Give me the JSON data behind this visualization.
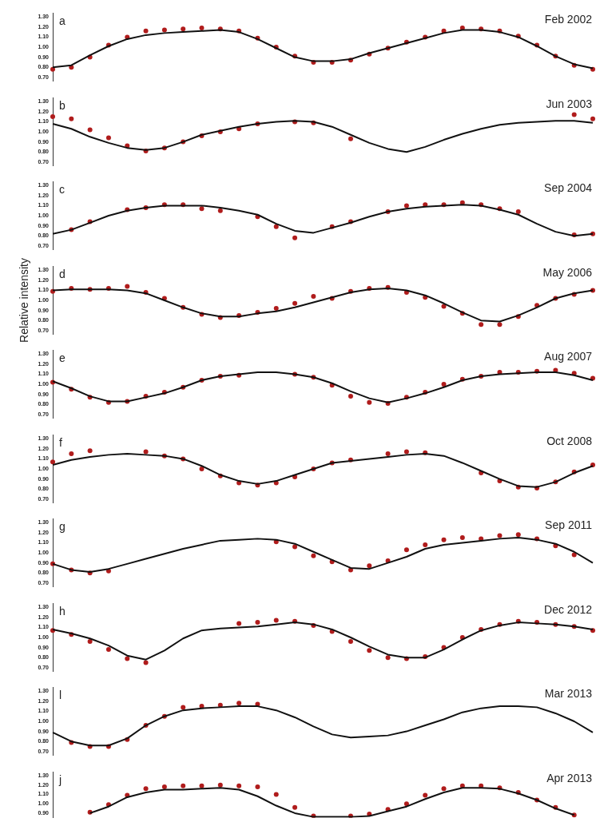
{
  "chart_data": [
    {
      "type": "line",
      "title": "Feb 2002",
      "annotations": [
        "a"
      ],
      "categories": [
        null,
        null,
        null,
        null,
        null,
        null,
        null,
        null,
        null,
        null,
        null,
        null,
        null,
        null,
        null,
        null,
        null,
        null,
        null,
        null,
        null,
        null,
        null,
        null,
        null,
        null,
        null,
        null,
        null,
        null
      ],
      "ylim": [
        0.66,
        1.34
      ],
      "yticks": [
        {
          "value": 0.7,
          "label": "0.70"
        },
        {
          "value": 0.8,
          "label": "0.80"
        },
        {
          "value": 0.9,
          "label": "0.90"
        },
        {
          "value": 1.0,
          "label": "1.00"
        },
        {
          "value": 1.1,
          "label": "1.10"
        },
        {
          "value": 1.2,
          "label": "1.20"
        },
        {
          "value": 1.3,
          "label": "1.30"
        }
      ],
      "tick_labels": "y",
      "series": [
        {
          "marker": "none",
          "color": "#111111",
          "values": [
            0.8,
            0.82,
            0.92,
            1.01,
            1.08,
            1.12,
            1.14,
            1.15,
            1.16,
            1.17,
            1.15,
            1.08,
            0.99,
            0.9,
            0.86,
            0.86,
            0.88,
            0.94,
            0.99,
            1.04,
            1.09,
            1.14,
            1.17,
            1.17,
            1.15,
            1.1,
            1.01,
            0.91,
            0.83,
            0.79
          ]
        },
        {
          "type": "scatter",
          "marker": "circle",
          "color": "#b01c1c",
          "values": [
            0.78,
            0.8,
            0.9,
            1.02,
            1.1,
            1.16,
            1.17,
            1.18,
            1.19,
            1.18,
            1.16,
            1.09,
            1.0,
            0.91,
            0.85,
            0.85,
            0.87,
            0.93,
            0.99,
            1.05,
            1.1,
            1.16,
            1.19,
            1.18,
            1.16,
            1.11,
            1.02,
            0.91,
            0.82,
            0.78
          ]
        }
      ]
    },
    {
      "type": "line",
      "title": "Jun 2003",
      "annotations": [
        "b"
      ],
      "categories": [
        null,
        null,
        null,
        null,
        null,
        null,
        null,
        null,
        null,
        null,
        null,
        null,
        null,
        null,
        null,
        null,
        null,
        null,
        null,
        null,
        null,
        null,
        null,
        null,
        null,
        null,
        null,
        null,
        null,
        null
      ],
      "ylim": [
        0.66,
        1.34
      ],
      "yticks": [
        {
          "value": 0.7,
          "label": "0.70"
        },
        {
          "value": 0.8,
          "label": "0.80"
        },
        {
          "value": 0.9,
          "label": "0.90"
        },
        {
          "value": 1.0,
          "label": "1.00"
        },
        {
          "value": 1.1,
          "label": "1.10"
        },
        {
          "value": 1.2,
          "label": "1.20"
        },
        {
          "value": 1.3,
          "label": "1.30"
        }
      ],
      "tick_labels": "y",
      "series": [
        {
          "marker": "none",
          "color": "#111111",
          "values": [
            1.08,
            1.03,
            0.95,
            0.89,
            0.84,
            0.82,
            0.84,
            0.9,
            0.97,
            1.01,
            1.05,
            1.08,
            1.1,
            1.11,
            1.1,
            1.05,
            0.97,
            0.89,
            0.83,
            0.8,
            0.85,
            0.92,
            0.98,
            1.03,
            1.07,
            1.09,
            1.1,
            1.11,
            1.11,
            1.09
          ]
        },
        {
          "type": "scatter",
          "marker": "circle",
          "color": "#b01c1c",
          "values": [
            1.15,
            1.13,
            1.02,
            0.94,
            0.86,
            0.81,
            0.84,
            0.9,
            0.96,
            1.0,
            1.03,
            1.08,
            null,
            1.1,
            1.09,
            null,
            0.93,
            null,
            null,
            null,
            null,
            null,
            null,
            null,
            null,
            null,
            null,
            null,
            1.17,
            1.13
          ]
        }
      ]
    },
    {
      "type": "line",
      "title": "Sep 2004",
      "annotations": [
        "c"
      ],
      "categories": [
        null,
        null,
        null,
        null,
        null,
        null,
        null,
        null,
        null,
        null,
        null,
        null,
        null,
        null,
        null,
        null,
        null,
        null,
        null,
        null,
        null,
        null,
        null,
        null,
        null,
        null,
        null,
        null,
        null,
        null
      ],
      "ylim": [
        0.66,
        1.34
      ],
      "yticks": [
        {
          "value": 0.7,
          "label": "0.70"
        },
        {
          "value": 0.8,
          "label": "0.80"
        },
        {
          "value": 0.9,
          "label": "0.90"
        },
        {
          "value": 1.0,
          "label": "1.00"
        },
        {
          "value": 1.1,
          "label": "1.10"
        },
        {
          "value": 1.2,
          "label": "1.20"
        },
        {
          "value": 1.3,
          "label": "1.30"
        }
      ],
      "tick_labels": "y",
      "series": [
        {
          "marker": "none",
          "color": "#111111",
          "values": [
            0.82,
            0.86,
            0.93,
            1.0,
            1.05,
            1.08,
            1.1,
            1.1,
            1.1,
            1.08,
            1.05,
            1.01,
            0.92,
            0.85,
            0.83,
            0.88,
            0.93,
            0.99,
            1.04,
            1.07,
            1.09,
            1.1,
            1.11,
            1.1,
            1.06,
            1.01,
            0.92,
            0.84,
            0.8,
            0.82
          ]
        },
        {
          "type": "scatter",
          "marker": "circle",
          "color": "#b01c1c",
          "values": [
            null,
            0.86,
            0.94,
            null,
            1.06,
            1.08,
            1.11,
            1.11,
            1.07,
            1.05,
            null,
            0.99,
            0.89,
            0.78,
            null,
            0.89,
            0.94,
            null,
            1.04,
            1.1,
            1.11,
            1.11,
            1.13,
            1.11,
            1.07,
            1.04,
            null,
            null,
            0.81,
            0.82
          ]
        }
      ]
    },
    {
      "type": "line",
      "title": "May 2006",
      "ylabel": "Relative intensity",
      "annotations": [
        "d"
      ],
      "categories": [
        null,
        null,
        null,
        null,
        null,
        null,
        null,
        null,
        null,
        null,
        null,
        null,
        null,
        null,
        null,
        null,
        null,
        null,
        null,
        null,
        null,
        null,
        null,
        null,
        null,
        null,
        null,
        null,
        null,
        null
      ],
      "ylim": [
        0.66,
        1.34
      ],
      "yticks": [
        {
          "value": 0.7,
          "label": "0.70"
        },
        {
          "value": 0.8,
          "label": "0.80"
        },
        {
          "value": 0.9,
          "label": "0.90"
        },
        {
          "value": 1.0,
          "label": "1.00"
        },
        {
          "value": 1.1,
          "label": "1.10"
        },
        {
          "value": 1.2,
          "label": "1.20"
        },
        {
          "value": 1.3,
          "label": "1.30"
        }
      ],
      "tick_labels": "y",
      "series": [
        {
          "marker": "none",
          "color": "#111111",
          "values": [
            1.1,
            1.11,
            1.11,
            1.11,
            1.1,
            1.07,
            1.0,
            0.93,
            0.87,
            0.84,
            0.84,
            0.87,
            0.89,
            0.93,
            0.98,
            1.03,
            1.08,
            1.11,
            1.12,
            1.1,
            1.05,
            0.97,
            0.88,
            0.8,
            0.79,
            0.85,
            0.93,
            1.02,
            1.07,
            1.1
          ]
        },
        {
          "type": "scatter",
          "marker": "circle",
          "color": "#b01c1c",
          "values": [
            1.09,
            1.12,
            1.11,
            1.12,
            1.14,
            1.08,
            1.02,
            0.93,
            0.86,
            0.83,
            0.85,
            0.88,
            0.92,
            0.97,
            1.04,
            1.02,
            1.09,
            1.12,
            1.13,
            1.08,
            1.03,
            0.94,
            0.87,
            0.76,
            0.76,
            0.84,
            0.95,
            1.02,
            1.06,
            1.1
          ]
        }
      ]
    },
    {
      "type": "line",
      "title": "Aug 2007",
      "annotations": [
        "e"
      ],
      "categories": [
        null,
        null,
        null,
        null,
        null,
        null,
        null,
        null,
        null,
        null,
        null,
        null,
        null,
        null,
        null,
        null,
        null,
        null,
        null,
        null,
        null,
        null,
        null,
        null,
        null,
        null,
        null,
        null,
        null,
        null
      ],
      "ylim": [
        0.66,
        1.34
      ],
      "yticks": [
        {
          "value": 0.7,
          "label": "0.70"
        },
        {
          "value": 0.8,
          "label": "0.80"
        },
        {
          "value": 0.9,
          "label": "0.90"
        },
        {
          "value": 1.0,
          "label": "1.00"
        },
        {
          "value": 1.1,
          "label": "1.10"
        },
        {
          "value": 1.2,
          "label": "1.20"
        },
        {
          "value": 1.3,
          "label": "1.30"
        }
      ],
      "tick_labels": "y",
      "series": [
        {
          "marker": "none",
          "color": "#111111",
          "values": [
            1.03,
            0.96,
            0.88,
            0.83,
            0.83,
            0.87,
            0.91,
            0.97,
            1.04,
            1.08,
            1.1,
            1.12,
            1.12,
            1.1,
            1.07,
            1.01,
            0.93,
            0.86,
            0.82,
            0.86,
            0.91,
            0.97,
            1.04,
            1.08,
            1.1,
            1.11,
            1.12,
            1.12,
            1.09,
            1.04
          ]
        },
        {
          "type": "scatter",
          "marker": "circle",
          "color": "#b01c1c",
          "values": [
            1.02,
            0.95,
            0.87,
            0.82,
            0.83,
            0.88,
            0.92,
            0.97,
            1.04,
            1.08,
            1.09,
            null,
            null,
            1.1,
            1.07,
            0.99,
            0.88,
            0.82,
            0.81,
            0.87,
            0.92,
            1.0,
            1.05,
            1.08,
            1.12,
            1.12,
            1.13,
            1.14,
            1.11,
            1.06
          ]
        }
      ]
    },
    {
      "type": "line",
      "title": "Oct 2008",
      "annotations": [
        "f"
      ],
      "categories": [
        null,
        null,
        null,
        null,
        null,
        null,
        null,
        null,
        null,
        null,
        null,
        null,
        null,
        null,
        null,
        null,
        null,
        null,
        null,
        null,
        null,
        null,
        null,
        null,
        null,
        null,
        null,
        null,
        null,
        null
      ],
      "ylim": [
        0.66,
        1.34
      ],
      "yticks": [
        {
          "value": 0.7,
          "label": "0.70"
        },
        {
          "value": 0.8,
          "label": "0.80"
        },
        {
          "value": 0.9,
          "label": "0.90"
        },
        {
          "value": 1.0,
          "label": "1.00"
        },
        {
          "value": 1.1,
          "label": "1.10"
        },
        {
          "value": 1.2,
          "label": "1.20"
        },
        {
          "value": 1.3,
          "label": "1.30"
        }
      ],
      "tick_labels": "y",
      "series": [
        {
          "marker": "none",
          "color": "#111111",
          "values": [
            1.04,
            1.09,
            1.12,
            1.14,
            1.15,
            1.14,
            1.13,
            1.1,
            1.03,
            0.94,
            0.88,
            0.85,
            0.88,
            0.94,
            1.0,
            1.06,
            1.08,
            1.1,
            1.12,
            1.14,
            1.15,
            1.13,
            1.06,
            0.98,
            0.9,
            0.83,
            0.82,
            0.87,
            0.96,
            1.03
          ]
        },
        {
          "type": "scatter",
          "marker": "circle",
          "color": "#b01c1c",
          "values": [
            1.07,
            1.15,
            1.18,
            null,
            null,
            1.17,
            1.13,
            1.1,
            1.0,
            0.93,
            0.86,
            0.84,
            0.86,
            0.92,
            1.0,
            1.06,
            1.09,
            null,
            1.15,
            1.17,
            1.16,
            null,
            null,
            0.96,
            0.88,
            0.82,
            0.81,
            0.87,
            0.97,
            1.04
          ]
        }
      ]
    },
    {
      "type": "line",
      "title": "Sep 2011",
      "annotations": [
        "g"
      ],
      "categories": [
        null,
        null,
        null,
        null,
        null,
        null,
        null,
        null,
        null,
        null,
        null,
        null,
        null,
        null,
        null,
        null,
        null,
        null,
        null,
        null,
        null,
        null,
        null,
        null,
        null,
        null,
        null,
        null,
        null,
        null
      ],
      "ylim": [
        0.66,
        1.34
      ],
      "yticks": [
        {
          "value": 0.7,
          "label": "0.70"
        },
        {
          "value": 0.8,
          "label": "0.80"
        },
        {
          "value": 0.9,
          "label": "0.90"
        },
        {
          "value": 1.0,
          "label": "1.00"
        },
        {
          "value": 1.1,
          "label": "1.10"
        },
        {
          "value": 1.2,
          "label": "1.20"
        },
        {
          "value": 1.3,
          "label": "1.30"
        }
      ],
      "tick_labels": "y",
      "series": [
        {
          "marker": "none",
          "color": "#111111",
          "values": [
            0.89,
            0.83,
            0.81,
            0.84,
            0.89,
            0.94,
            0.99,
            1.04,
            1.08,
            1.12,
            1.13,
            1.14,
            1.13,
            1.09,
            1.01,
            0.93,
            0.85,
            0.84,
            0.9,
            0.96,
            1.04,
            1.08,
            1.1,
            1.12,
            1.14,
            1.15,
            1.13,
            1.09,
            1.01,
            0.9
          ]
        },
        {
          "type": "scatter",
          "marker": "circle",
          "color": "#b01c1c",
          "values": [
            0.89,
            0.83,
            0.8,
            0.82,
            null,
            null,
            null,
            null,
            null,
            null,
            null,
            null,
            1.11,
            1.06,
            0.97,
            0.91,
            0.83,
            0.87,
            0.92,
            1.03,
            1.08,
            1.13,
            1.15,
            1.14,
            1.17,
            1.18,
            1.14,
            1.07,
            0.98,
            null
          ]
        }
      ]
    },
    {
      "type": "line",
      "title": "Dec 2012",
      "annotations": [
        "h"
      ],
      "categories": [
        null,
        null,
        null,
        null,
        null,
        null,
        null,
        null,
        null,
        null,
        null,
        null,
        null,
        null,
        null,
        null,
        null,
        null,
        null,
        null,
        null,
        null,
        null,
        null,
        null,
        null,
        null,
        null,
        null,
        null
      ],
      "ylim": [
        0.66,
        1.34
      ],
      "yticks": [
        {
          "value": 0.7,
          "label": "0.70"
        },
        {
          "value": 0.8,
          "label": "0.80"
        },
        {
          "value": 0.9,
          "label": "0.90"
        },
        {
          "value": 1.0,
          "label": "1.00"
        },
        {
          "value": 1.1,
          "label": "1.10"
        },
        {
          "value": 1.2,
          "label": "1.20"
        },
        {
          "value": 1.3,
          "label": "1.30"
        }
      ],
      "tick_labels": "y",
      "series": [
        {
          "marker": "none",
          "color": "#111111",
          "values": [
            1.08,
            1.04,
            0.99,
            0.92,
            0.82,
            0.78,
            0.87,
            0.99,
            1.07,
            1.09,
            1.1,
            1.11,
            1.13,
            1.15,
            1.13,
            1.08,
            1.0,
            0.91,
            0.83,
            0.8,
            0.8,
            0.88,
            0.98,
            1.07,
            1.12,
            1.15,
            1.14,
            1.13,
            1.11,
            1.08
          ]
        },
        {
          "type": "scatter",
          "marker": "circle",
          "color": "#b01c1c",
          "values": [
            1.07,
            1.03,
            0.96,
            0.88,
            0.79,
            0.75,
            null,
            null,
            null,
            null,
            1.14,
            1.15,
            1.17,
            1.16,
            1.12,
            1.06,
            0.96,
            0.87,
            0.8,
            0.79,
            0.81,
            0.9,
            1.0,
            1.08,
            1.13,
            1.16,
            1.15,
            1.13,
            1.11,
            1.07
          ]
        }
      ]
    },
    {
      "type": "line",
      "title": "Mar 2013",
      "annotations": [
        "l"
      ],
      "categories": [
        null,
        null,
        null,
        null,
        null,
        null,
        null,
        null,
        null,
        null,
        null,
        null,
        null,
        null,
        null,
        null,
        null,
        null,
        null,
        null,
        null,
        null,
        null,
        null,
        null,
        null,
        null,
        null,
        null,
        null
      ],
      "ylim": [
        0.66,
        1.34
      ],
      "yticks": [
        {
          "value": 0.7,
          "label": "0.70"
        },
        {
          "value": 0.8,
          "label": "0.80"
        },
        {
          "value": 0.9,
          "label": "0.90"
        },
        {
          "value": 1.0,
          "label": "1.00"
        },
        {
          "value": 1.1,
          "label": "1.10"
        },
        {
          "value": 1.2,
          "label": "1.20"
        },
        {
          "value": 1.3,
          "label": "1.30"
        }
      ],
      "tick_labels": "y",
      "series": [
        {
          "marker": "none",
          "color": "#111111",
          "values": [
            0.89,
            0.8,
            0.76,
            0.76,
            0.83,
            0.96,
            1.05,
            1.11,
            1.13,
            1.14,
            1.15,
            1.15,
            1.11,
            1.04,
            0.95,
            0.87,
            0.84,
            0.85,
            0.86,
            0.9,
            0.96,
            1.02,
            1.09,
            1.13,
            1.15,
            1.15,
            1.14,
            1.08,
            1.0,
            0.89
          ]
        },
        {
          "type": "scatter",
          "marker": "circle",
          "color": "#b01c1c",
          "values": [
            null,
            0.79,
            0.75,
            0.75,
            0.82,
            0.96,
            1.05,
            1.14,
            1.15,
            1.16,
            1.18,
            1.17,
            null,
            null,
            null,
            null,
            null,
            null,
            null,
            null,
            null,
            null,
            null,
            null,
            null,
            null,
            null,
            null,
            null,
            null
          ]
        }
      ]
    },
    {
      "type": "line",
      "title": "Apr 2013",
      "annotations": [
        "j"
      ],
      "categories": [
        null,
        null,
        null,
        null,
        null,
        null,
        null,
        null,
        null,
        null,
        null,
        null,
        null,
        null,
        null,
        null,
        null,
        null,
        null,
        null,
        null,
        null,
        null,
        null,
        null,
        null,
        null,
        null,
        null,
        null
      ],
      "ylim": [
        0.85,
        1.34
      ],
      "yticks": [
        {
          "value": 0.9,
          "label": "0.90"
        },
        {
          "value": 1.0,
          "label": "1.00"
        },
        {
          "value": 1.1,
          "label": "1.10"
        },
        {
          "value": 1.2,
          "label": "1.20"
        },
        {
          "value": 1.3,
          "label": "1.30"
        }
      ],
      "tick_labels": "y",
      "series": [
        {
          "marker": "none",
          "color": "#111111",
          "values": [
            null,
            null,
            0.9,
            0.97,
            1.07,
            1.12,
            1.15,
            1.15,
            1.16,
            1.17,
            1.15,
            1.08,
            0.98,
            0.9,
            0.86,
            0.86,
            0.86,
            0.87,
            0.92,
            0.97,
            1.05,
            1.12,
            1.17,
            1.17,
            1.16,
            1.11,
            1.04,
            0.95,
            0.88,
            null
          ]
        },
        {
          "type": "scatter",
          "marker": "circle",
          "color": "#b01c1c",
          "values": [
            null,
            null,
            0.91,
            0.99,
            1.09,
            1.16,
            1.18,
            1.19,
            1.19,
            1.2,
            1.19,
            1.18,
            1.1,
            0.96,
            0.87,
            null,
            0.87,
            0.89,
            0.94,
            1.0,
            1.09,
            1.16,
            1.19,
            1.19,
            1.17,
            1.12,
            1.04,
            0.96,
            0.88,
            null
          ]
        }
      ]
    }
  ]
}
